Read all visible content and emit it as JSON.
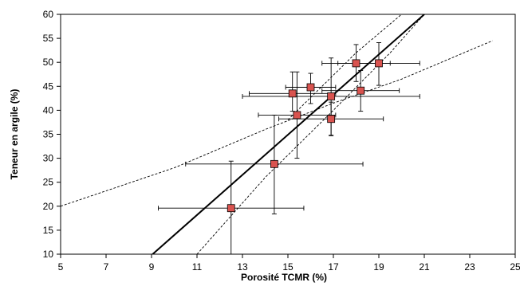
{
  "chart_data": {
    "type": "scatter",
    "title": "",
    "xlabel": "Porosité TCMR (%)",
    "ylabel": "Teneur en argile (%)",
    "xlim": [
      5,
      25
    ],
    "ylim": [
      10,
      60
    ],
    "x_ticks": [
      5,
      7,
      9,
      11,
      13,
      15,
      17,
      19,
      21,
      23,
      25
    ],
    "y_ticks": [
      10,
      15,
      20,
      25,
      30,
      35,
      40,
      45,
      50,
      55,
      60
    ],
    "grid": false,
    "legend": "none",
    "marker_color": "#d9534f",
    "series": [
      {
        "marker": "square",
        "points": [
          {
            "x": 12.5,
            "y": 19.6,
            "xerr": 3.2,
            "yerr_low": 11.2,
            "yerr_high": 9.8
          },
          {
            "x": 14.4,
            "y": 28.8,
            "xerr": 3.9,
            "yerr_low": 10.4,
            "yerr_high": 10.2
          },
          {
            "x": 15.2,
            "y": 43.5,
            "xerr": 1.9,
            "yerr_low": 3.7,
            "yerr_high": 4.5
          },
          {
            "x": 15.4,
            "y": 39.0,
            "xerr": 1.7,
            "yerr_low": 9.0,
            "yerr_high": 9.0
          },
          {
            "x": 16.0,
            "y": 44.8,
            "xerr": 1.1,
            "yerr_low": 3.4,
            "yerr_high": 2.9
          },
          {
            "x": 16.9,
            "y": 42.9,
            "xerr": 3.9,
            "yerr_low": 8.1,
            "yerr_high": 8.0
          },
          {
            "x": 16.9,
            "y": 38.2,
            "xerr": 2.3,
            "yerr_low": 3.5,
            "yerr_high": 3.5
          },
          {
            "x": 18.0,
            "y": 49.8,
            "xerr": 1.5,
            "yerr_low": 3.8,
            "yerr_high": 3.9
          },
          {
            "x": 18.2,
            "y": 44.1,
            "xerr": 1.7,
            "yerr_low": 4.3,
            "yerr_high": 4.2
          },
          {
            "x": 19.0,
            "y": 49.8,
            "xerr": 1.8,
            "yerr_low": 4.6,
            "yerr_high": 4.3
          }
        ]
      }
    ],
    "lines": [
      {
        "style": "solid",
        "points": [
          [
            9,
            9.8
          ],
          [
            21,
            60
          ]
        ]
      },
      {
        "style": "dashed",
        "points": [
          [
            5,
            20
          ],
          [
            10,
            28
          ],
          [
            14,
            36
          ],
          [
            17,
            41.5
          ],
          [
            20,
            46.5
          ],
          [
            24,
            54.5
          ]
        ]
      },
      {
        "style": "dashed",
        "points": [
          [
            11,
            10
          ],
          [
            14,
            26
          ],
          [
            17,
            40
          ],
          [
            19.5,
            52
          ],
          [
            21,
            60
          ]
        ]
      },
      {
        "style": "dashed",
        "points": [
          [
            15,
            38
          ],
          [
            16.5,
            45
          ],
          [
            18,
            52
          ],
          [
            19.5,
            58
          ],
          [
            20,
            60
          ]
        ]
      }
    ]
  }
}
